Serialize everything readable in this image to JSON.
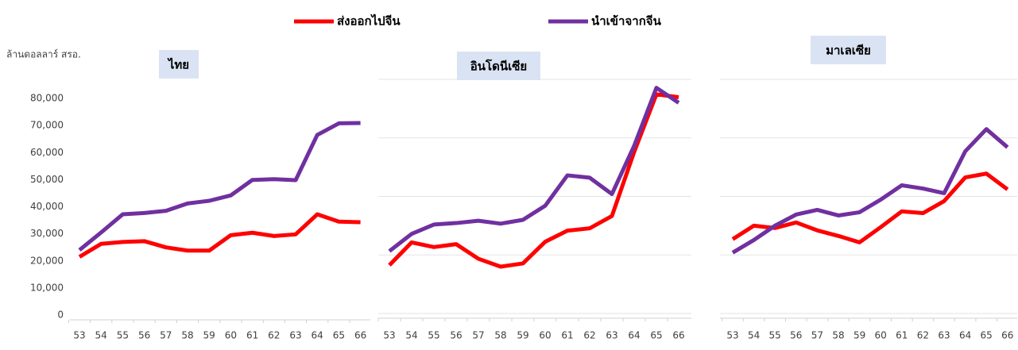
{
  "chart_data": [
    {
      "type": "line",
      "title": "ไทย",
      "y_label": "ล้านดอลลาร์ สรอ.",
      "categories": [
        "53",
        "54",
        "55",
        "56",
        "57",
        "58",
        "59",
        "60",
        "61",
        "62",
        "63",
        "64",
        "65",
        "66"
      ],
      "ylim": [
        0,
        80000
      ],
      "yticks": [
        0,
        {
          "value": 10000,
          "label": "10,000"
        },
        {
          "value": 20000,
          "label": "20,000"
        },
        {
          "value": 30000,
          "label": "30,000"
        },
        {
          "value": 40000,
          "label": "40,000"
        },
        {
          "value": 50000,
          "label": "50,000"
        },
        {
          "value": 60000,
          "label": "60,000"
        },
        {
          "value": 70000,
          "label": "70,000"
        },
        {
          "value": 80000,
          "label": "80,000"
        }
      ],
      "grid": false,
      "series": [
        {
          "name": "ส่งออกไปจีน",
          "color": "#ff0000",
          "values": [
            21500,
            26300,
            27000,
            27300,
            25000,
            23800,
            23800,
            29500,
            30400,
            29200,
            29800,
            37200,
            34500,
            34300
          ]
        },
        {
          "name": "นำเข้าจากจีน",
          "color": "#7030a0",
          "values": [
            24000,
            30500,
            37200,
            37700,
            38500,
            41200,
            42200,
            44200,
            49900,
            50200,
            49800,
            66500,
            70800,
            70900
          ]
        }
      ]
    },
    {
      "type": "line",
      "title": "อินโดนีเซีย",
      "categories": [
        "53",
        "54",
        "55",
        "56",
        "57",
        "58",
        "59",
        "60",
        "61",
        "62",
        "63",
        "64",
        "65",
        "66"
      ],
      "ylim": [
        0,
        80000
      ],
      "yticks": [
        0,
        20000,
        40000,
        60000,
        80000
      ],
      "grid": true,
      "series": [
        {
          "color": "#ff0000",
          "values": [
            16500,
            24300,
            22700,
            23700,
            18700,
            16000,
            17100,
            24500,
            28300,
            29100,
            33300,
            55200,
            74900,
            73900
          ]
        },
        {
          "color": "#7030a0",
          "values": [
            21300,
            27200,
            30400,
            30900,
            31700,
            30700,
            32000,
            36800,
            47200,
            46400,
            40800,
            57300,
            77100,
            72000
          ]
        }
      ]
    },
    {
      "type": "line",
      "title": "มาเลเซีย",
      "categories": [
        "53",
        "54",
        "55",
        "56",
        "57",
        "58",
        "59",
        "60",
        "61",
        "62",
        "63",
        "64",
        "65",
        "66"
      ],
      "ylim": [
        0,
        80000
      ],
      "yticks": [
        0,
        20000,
        40000,
        60000,
        80000
      ],
      "grid": true,
      "series": [
        {
          "color": "#ff0000",
          "values": [
            25400,
            30000,
            29200,
            31100,
            28400,
            26500,
            24300,
            29500,
            34900,
            34300,
            38400,
            46500,
            47800,
            42400
          ]
        },
        {
          "color": "#7030a0",
          "values": [
            20800,
            25100,
            30000,
            33800,
            35400,
            33500,
            34600,
            38900,
            43800,
            42700,
            41100,
            55400,
            63000,
            56800
          ]
        }
      ]
    }
  ]
}
